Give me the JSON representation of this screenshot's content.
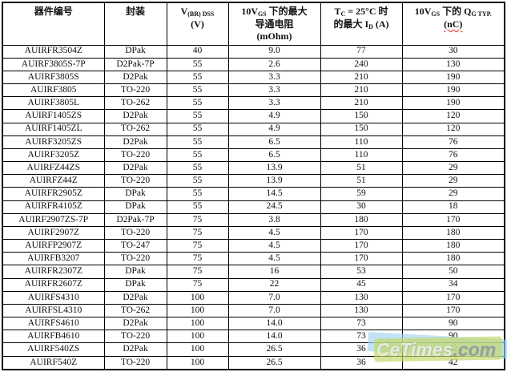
{
  "chart_data": {
    "type": "table",
    "title": "功率MOSFET产品选型表",
    "column_labels": [
      "器件编号",
      "封装",
      "V(BR)DSS (V)",
      "10VGS 下的最大导通电阻 (mOhm)",
      "TC = 25°C 时的最大 ID (A)",
      "10VGS 下的 QG TYP. (nC)"
    ],
    "headers": {
      "c1": "器件编号",
      "c2": "封装",
      "c3": {
        "pre": "V",
        "sub": "(BR) DSS",
        "unit": "(V)"
      },
      "c4": {
        "pre": "10V",
        "sub": "GS",
        "post": " 下的最大",
        "line2": "导通电阻",
        "unit": "(mOhm)"
      },
      "c5": {
        "pre": "T",
        "sub": "C",
        "post": " = 25°C 时",
        "l2a": "的最大 I",
        "l2sub": "D",
        "l2b": " (A)"
      },
      "c6": {
        "pre": "10V",
        "sub": "GS",
        "post": " 下的 Q",
        "sub2": "G TYP.",
        "unit": "(nC)"
      }
    },
    "rows": [
      [
        "AUIRFR3504Z",
        "DPak",
        "40",
        "9.0",
        "77",
        "30"
      ],
      [
        "AUIRF3805S-7P",
        "D2Pak-7P",
        "55",
        "2.6",
        "240",
        "130"
      ],
      [
        "AUIRF3805S",
        "D2Pak",
        "55",
        "3.3",
        "210",
        "190"
      ],
      [
        "AUIRF3805",
        "TO-220",
        "55",
        "3.3",
        "210",
        "190"
      ],
      [
        "AUIRF3805L",
        "TO-262",
        "55",
        "3.3",
        "210",
        "190"
      ],
      [
        "AUIRF1405ZS",
        "D2Pak",
        "55",
        "4.9",
        "150",
        "120"
      ],
      [
        "AUIRF1405ZL",
        "TO-262",
        "55",
        "4.9",
        "150",
        "120"
      ],
      [
        "AUIRF3205ZS",
        "D2Pak",
        "55",
        "6.5",
        "110",
        "76"
      ],
      [
        "AUIRF3205Z",
        "TO-220",
        "55",
        "6.5",
        "110",
        "76"
      ],
      [
        "AUIRFZ44ZS",
        "D2Pak",
        "55",
        "13.9",
        "51",
        "29"
      ],
      [
        "AUIRFZ44Z",
        "TO-220",
        "55",
        "13.9",
        "51",
        "29"
      ],
      [
        "AUIRFR2905Z",
        "DPak",
        "55",
        "14.5",
        "59",
        "29"
      ],
      [
        "AUIRFR4105Z",
        "DPak",
        "55",
        "24.5",
        "30",
        "18"
      ],
      [
        "AUIRF2907ZS-7P",
        "D2Pak-7P",
        "75",
        "3.8",
        "180",
        "170"
      ],
      [
        "AUIRF2907Z",
        "TO-220",
        "75",
        "4.5",
        "170",
        "180"
      ],
      [
        "AUIRFP2907Z",
        "TO-247",
        "75",
        "4.5",
        "170",
        "180"
      ],
      [
        "AUIRFB3207",
        "TO-220",
        "75",
        "4.5",
        "170",
        "180"
      ],
      [
        "AUIRFR2307Z",
        "DPak",
        "75",
        "16",
        "53",
        "50"
      ],
      [
        "AUIRFR2607Z",
        "DPak",
        "75",
        "22",
        "45",
        "34"
      ],
      [
        "AUIRFS4310",
        "D2Pak",
        "100",
        "7.0",
        "130",
        "170"
      ],
      [
        "AUIRFSL4310",
        "TO-262",
        "100",
        "7.0",
        "130",
        "170"
      ],
      [
        "AUIRFS4610",
        "D2Pak",
        "100",
        "14.0",
        "73",
        "90"
      ],
      [
        "AUIRFB4610",
        "TO-220",
        "100",
        "14.0",
        "73",
        "90"
      ],
      [
        "AUIRF540ZS",
        "D2Pak",
        "100",
        "26.5",
        "36",
        "42"
      ],
      [
        "AUIRF540Z",
        "TO-220",
        "100",
        "26.5",
        "36",
        "42"
      ]
    ]
  },
  "watermark": {
    "main": "CeTimes",
    "suffix": ".com",
    "band_color": "#c3d966",
    "ribbon_color": "#9fd4ef"
  }
}
